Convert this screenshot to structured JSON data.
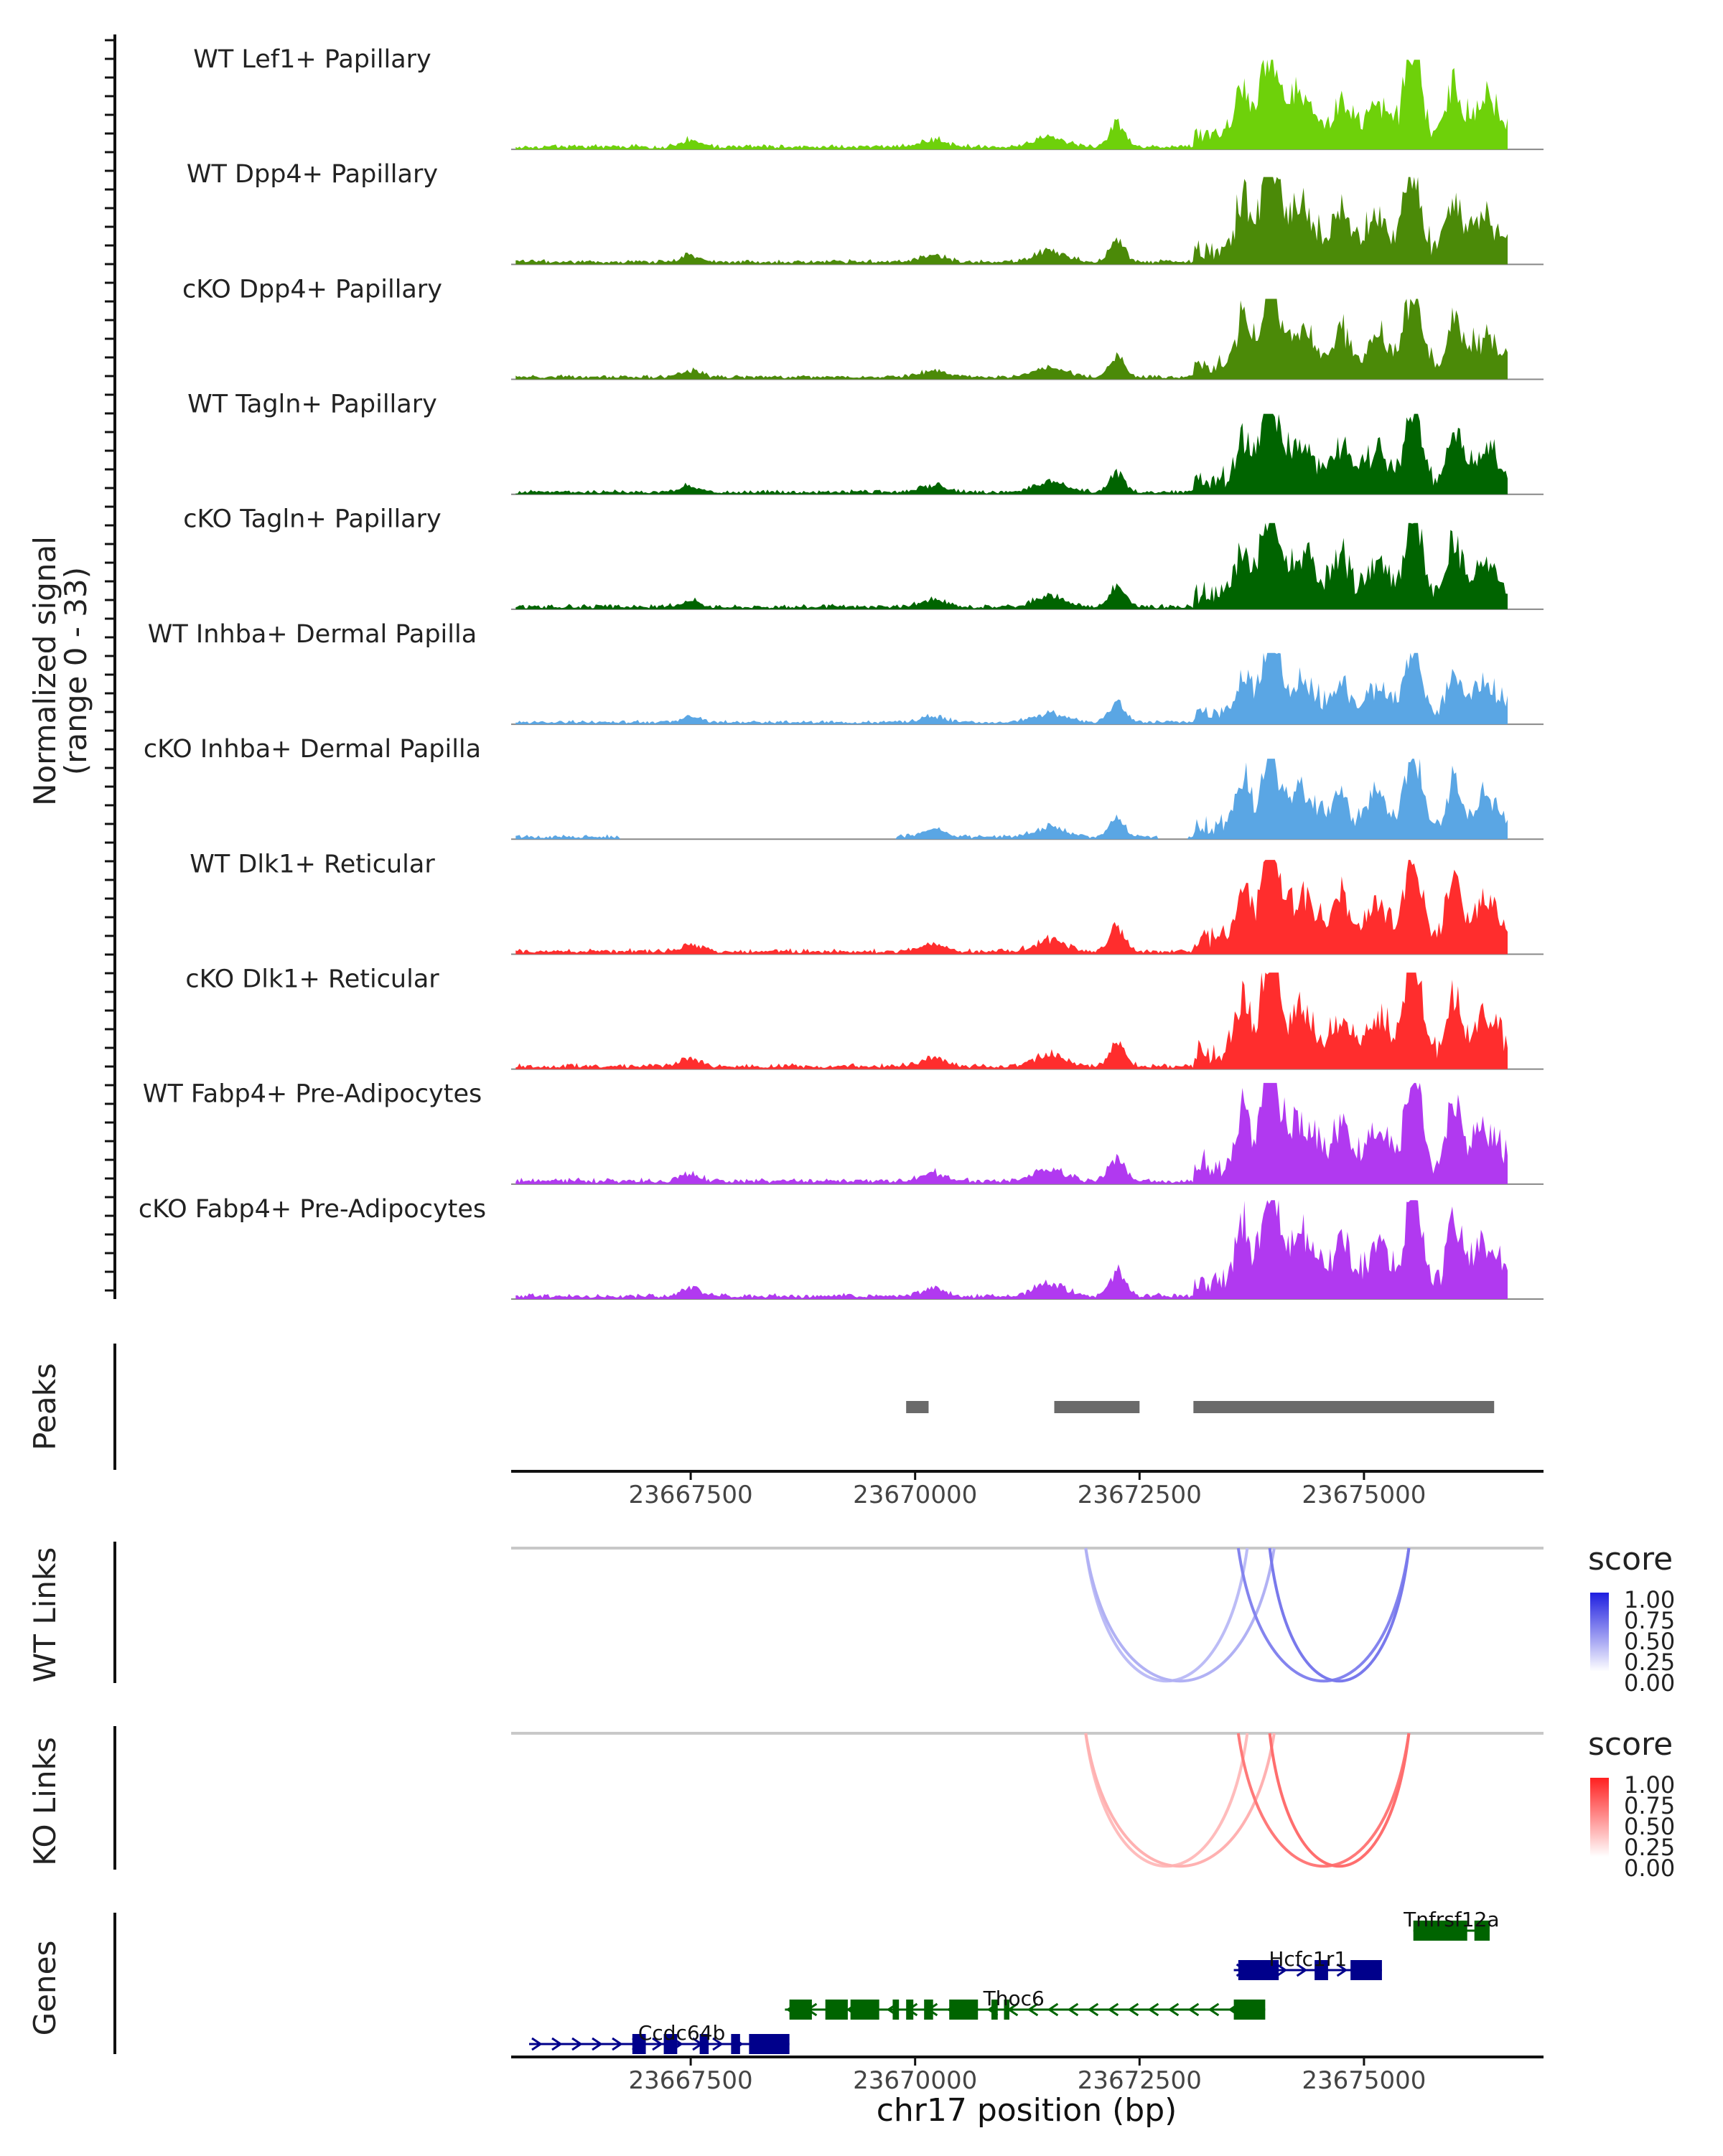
{
  "chart_data": {
    "type": "coverage_track",
    "title": "",
    "chromosome": "chr17",
    "xlim": [
      23665500,
      23677000
    ],
    "xlabel": "chr17 position (bp)",
    "xticks": [
      23667500,
      23670000,
      23672500,
      23675000
    ],
    "xtick_labels": [
      "23667500",
      "23670000",
      "23672500",
      "23675000"
    ],
    "signal": {
      "ylabel_line1": "Normalized signal",
      "ylabel_line2": "(range 0 - 33)",
      "range": [
        0,
        33
      ],
      "tracks": [
        {
          "name": "WT Lef1+ Papillary",
          "color": "#6ed10a",
          "scale": 0.78,
          "gap": false,
          "peak_seed": 1
        },
        {
          "name": "WT Dpp4+ Papillary",
          "color": "#4b8a08",
          "scale": 0.76,
          "gap": false,
          "peak_seed": 2
        },
        {
          "name": "cKO Dpp4+ Papillary",
          "color": "#4b8a08",
          "scale": 0.7,
          "gap": false,
          "peak_seed": 3
        },
        {
          "name": "WT Tagln+ Papillary",
          "color": "#006400",
          "scale": 0.7,
          "gap": false,
          "peak_seed": 4
        },
        {
          "name": "cKO Tagln+ Papillary",
          "color": "#006400",
          "scale": 0.75,
          "gap": false,
          "peak_seed": 5
        },
        {
          "name": "WT Inhba+ Dermal Papilla",
          "color": "#5aa6e4",
          "scale": 0.62,
          "gap": false,
          "peak_seed": 6
        },
        {
          "name": "cKO Inhba+ Dermal Papilla",
          "color": "#5aa6e4",
          "scale": 0.7,
          "gap": true,
          "peak_seed": 7
        },
        {
          "name": "WT Dlk1+ Reticular",
          "color": "#ff2d2d",
          "scale": 0.82,
          "gap": false,
          "peak_seed": 8
        },
        {
          "name": "cKO Dlk1+ Reticular",
          "color": "#ff2d2d",
          "scale": 0.84,
          "gap": false,
          "peak_seed": 9
        },
        {
          "name": "WT Fabp4+ Pre-Adipocytes",
          "color": "#b139f0",
          "scale": 0.88,
          "gap": false,
          "peak_seed": 10
        },
        {
          "name": "cKO Fabp4+ Pre-Adipocytes",
          "color": "#b139f0",
          "scale": 0.86,
          "gap": false,
          "peak_seed": 11
        }
      ]
    },
    "peaks": {
      "label": "Peaks",
      "color": "#6a6a6a",
      "regions": [
        [
          23669900,
          23670150
        ],
        [
          23671550,
          23672500
        ],
        [
          23673100,
          23676450
        ]
      ]
    },
    "wt_links": {
      "label": "WT Links",
      "legend_title": "score",
      "legend_ticks": [
        "1.00",
        "0.75",
        "0.50",
        "0.25",
        "0.00"
      ],
      "color_high": "#1f1fe0",
      "links": [
        {
          "start": 23671900,
          "end": 23673700,
          "score": 0.3
        },
        {
          "start": 23671900,
          "end": 23674000,
          "score": 0.35
        },
        {
          "start": 23673600,
          "end": 23675500,
          "score": 0.55
        },
        {
          "start": 23673950,
          "end": 23675500,
          "score": 0.6
        }
      ]
    },
    "ko_links": {
      "label": "KO Links",
      "legend_title": "score",
      "legend_ticks": [
        "1.00",
        "0.75",
        "0.50",
        "0.25",
        "0.00"
      ],
      "color_high": "#ff2020",
      "links": [
        {
          "start": 23671900,
          "end": 23673700,
          "score": 0.3
        },
        {
          "start": 23671900,
          "end": 23674000,
          "score": 0.35
        },
        {
          "start": 23673600,
          "end": 23675500,
          "score": 0.6
        },
        {
          "start": 23673950,
          "end": 23675500,
          "score": 0.65
        }
      ]
    },
    "genes": {
      "label": "Genes",
      "items": [
        {
          "name": "Tnfrsf12a",
          "start": 23675550,
          "end": 23676400,
          "strand": "-",
          "color": "#006400",
          "row": 0,
          "exons": [
            [
              23675550,
              23676150
            ],
            [
              23676230,
              23676400
            ]
          ]
        },
        {
          "name": "Hcfc1r1",
          "start": 23673550,
          "end": 23675200,
          "strand": "+",
          "color": "#00008b",
          "row": 1,
          "exons": [
            [
              23673600,
              23674050
            ],
            [
              23674450,
              23674600
            ],
            [
              23674850,
              23675200
            ]
          ]
        },
        {
          "name": "Thoc6",
          "start": 23668550,
          "end": 23673900,
          "strand": "-",
          "color": "#006400",
          "row": 2,
          "exons": [
            [
              23668600,
              23668850
            ],
            [
              23669000,
              23669250
            ],
            [
              23669280,
              23669600
            ],
            [
              23669750,
              23669820
            ],
            [
              23669900,
              23669980
            ],
            [
              23670100,
              23670200
            ],
            [
              23670380,
              23670700
            ],
            [
              23670850,
              23670920
            ],
            [
              23670990,
              23671050
            ],
            [
              23673550,
              23673900
            ]
          ]
        },
        {
          "name": "Ccdc64b",
          "start": 23665700,
          "end": 23668600,
          "strand": "+",
          "color": "#00008b",
          "row": 3,
          "exons": [
            [
              23666850,
              23667000
            ],
            [
              23667200,
              23667350
            ],
            [
              23667600,
              23667700
            ],
            [
              23667950,
              23668050
            ],
            [
              23668150,
              23668600
            ]
          ]
        }
      ]
    }
  }
}
